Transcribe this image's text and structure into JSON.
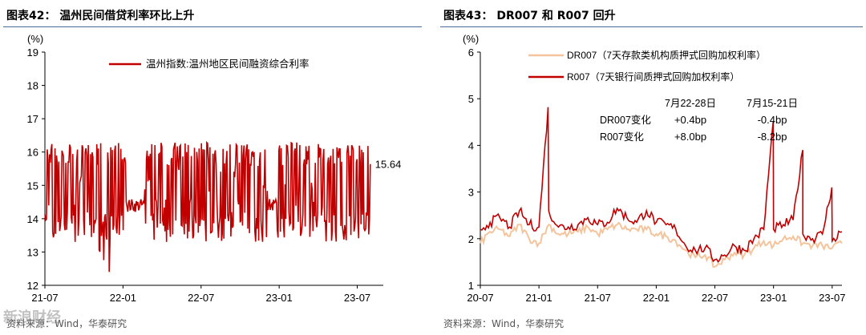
{
  "figures": [
    {
      "title": "图表42：  温州民间借贷利率环比上升",
      "source": "资料来源：Wind，华泰研究"
    },
    {
      "title": "图表43：  DR007 和 R007 回升",
      "source": "资料来源：Wind，华泰研究"
    }
  ],
  "watermark": "新浪财经",
  "chart_data": [
    {
      "type": "line",
      "title": "",
      "ylabel": "(%)",
      "ylim": [
        12,
        19
      ],
      "yticks": [
        "12",
        "13",
        "14",
        "15",
        "16",
        "17",
        "18",
        "19"
      ],
      "xticks": [
        "21-07",
        "22-01",
        "22-07",
        "23-01",
        "23-07"
      ],
      "xrange": [
        "2021-07",
        "2023-09"
      ],
      "grid": false,
      "legend_position": "top-center",
      "series": [
        {
          "name": "温州指数:温州地区民间融资综合利率",
          "color": "#c00000",
          "band_low": 13.6,
          "band_high": 16.1,
          "min": 12.35,
          "max": 16.85,
          "last": 15.64,
          "points": [
            [
              "2021-07",
              13.8
            ],
            [
              "2021-08",
              15.8
            ],
            [
              "2021-09",
              14.0
            ],
            [
              "2021-10",
              15.6
            ],
            [
              "2021-11",
              13.2
            ],
            [
              "2021-12",
              12.35
            ],
            [
              "2022-01",
              14.6
            ],
            [
              "2022-02",
              14.2
            ],
            [
              "2022-03",
              15.2
            ],
            [
              "2022-04",
              14.0
            ],
            [
              "2022-05",
              16.0
            ],
            [
              "2022-06",
              14.2
            ],
            [
              "2022-07",
              16.3
            ],
            [
              "2022-08",
              13.9
            ],
            [
              "2022-09",
              16.85
            ],
            [
              "2022-10",
              14.1
            ],
            [
              "2022-11",
              16.1
            ],
            [
              "2022-12",
              14.7
            ],
            [
              "2023-01",
              16.3
            ],
            [
              "2023-02",
              13.5
            ],
            [
              "2023-03",
              16.6
            ],
            [
              "2023-04",
              13.4
            ],
            [
              "2023-05",
              16.5
            ],
            [
              "2023-06",
              13.3
            ],
            [
              "2023-07",
              16.3
            ],
            [
              "2023-08",
              15.64
            ]
          ]
        }
      ],
      "annotations": [
        {
          "text": "15.64",
          "x": "2023-08",
          "y": 15.64
        }
      ]
    },
    {
      "type": "line",
      "title": "",
      "ylabel": "(%)",
      "ylim": [
        1,
        6
      ],
      "yticks": [
        "1",
        "2",
        "3",
        "4",
        "5",
        "6"
      ],
      "xticks": [
        "20-07",
        "21-01",
        "21-07",
        "22-01",
        "22-07",
        "23-01",
        "23-07"
      ],
      "xrange": [
        "2020-07",
        "2023-08"
      ],
      "grid": false,
      "legend_position": "top-left",
      "series": [
        {
          "name": "DR007（7天存款类机构质押式回购加权利率）",
          "color": "#f4c49c",
          "points": [
            [
              "2020-07",
              1.9
            ],
            [
              "2020-08",
              2.15
            ],
            [
              "2020-09",
              2.2
            ],
            [
              "2020-10",
              2.05
            ],
            [
              "2020-11",
              2.3
            ],
            [
              "2020-12",
              2.0
            ],
            [
              "2021-01",
              1.9
            ],
            [
              "2021-02",
              2.3
            ],
            [
              "2021-03",
              2.1
            ],
            [
              "2021-04",
              2.1
            ],
            [
              "2021-05",
              2.15
            ],
            [
              "2021-06",
              2.25
            ],
            [
              "2021-07",
              2.1
            ],
            [
              "2021-08",
              2.2
            ],
            [
              "2021-09",
              2.3
            ],
            [
              "2021-10",
              2.2
            ],
            [
              "2021-11",
              2.2
            ],
            [
              "2021-12",
              2.2
            ],
            [
              "2022-01",
              2.1
            ],
            [
              "2022-02",
              2.05
            ],
            [
              "2022-03",
              1.95
            ],
            [
              "2022-04",
              1.75
            ],
            [
              "2022-05",
              1.6
            ],
            [
              "2022-06",
              1.65
            ],
            [
              "2022-07",
              1.4
            ],
            [
              "2022-08",
              1.55
            ],
            [
              "2022-09",
              1.7
            ],
            [
              "2022-10",
              1.65
            ],
            [
              "2022-11",
              1.8
            ],
            [
              "2022-12",
              1.95
            ],
            [
              "2023-01",
              1.85
            ],
            [
              "2023-02",
              2.0
            ],
            [
              "2023-03",
              2.05
            ],
            [
              "2023-04",
              1.9
            ],
            [
              "2023-05",
              1.85
            ],
            [
              "2023-06",
              1.85
            ],
            [
              "2023-07",
              1.8
            ],
            [
              "2023-08",
              1.9
            ]
          ]
        },
        {
          "name": "R007（7天银行间质押式回购加权利率）",
          "color": "#c00000",
          "points": [
            [
              "2020-07",
              2.2
            ],
            [
              "2020-08",
              2.35
            ],
            [
              "2020-09",
              2.45
            ],
            [
              "2020-10",
              2.25
            ],
            [
              "2020-11",
              2.6
            ],
            [
              "2020-12",
              2.3
            ],
            [
              "2021-01",
              2.25
            ],
            [
              "2021-01-29",
              4.82
            ],
            [
              "2021-02",
              2.6
            ],
            [
              "2021-03",
              2.25
            ],
            [
              "2021-04",
              2.25
            ],
            [
              "2021-05",
              2.3
            ],
            [
              "2021-06",
              2.45
            ],
            [
              "2021-07",
              2.3
            ],
            [
              "2021-08",
              2.35
            ],
            [
              "2021-09",
              2.65
            ],
            [
              "2021-10",
              2.45
            ],
            [
              "2021-11",
              2.35
            ],
            [
              "2021-12",
              2.6
            ],
            [
              "2022-01",
              2.35
            ],
            [
              "2022-02",
              2.3
            ],
            [
              "2022-03",
              2.2
            ],
            [
              "2022-04",
              1.85
            ],
            [
              "2022-05",
              1.75
            ],
            [
              "2022-06",
              1.8
            ],
            [
              "2022-07",
              1.55
            ],
            [
              "2022-08",
              1.65
            ],
            [
              "2022-09",
              1.85
            ],
            [
              "2022-10",
              1.75
            ],
            [
              "2022-11",
              2.0
            ],
            [
              "2022-12",
              2.2
            ],
            [
              "2022-12-30",
              4.52
            ],
            [
              "2023-01",
              2.2
            ],
            [
              "2023-02",
              2.3
            ],
            [
              "2023-03",
              2.4
            ],
            [
              "2023-03-31",
              3.9
            ],
            [
              "2023-04",
              2.1
            ],
            [
              "2023-05",
              2.0
            ],
            [
              "2023-06",
              2.1
            ],
            [
              "2023-06-30",
              3.1
            ],
            [
              "2023-07",
              1.95
            ],
            [
              "2023-08",
              2.15
            ]
          ]
        }
      ],
      "table": {
        "headers": [
          "7月22-28日",
          "7月15-21日"
        ],
        "rows": [
          {
            "label": "DR007变化",
            "values": [
              "+0.4bp",
              "-0.4bp"
            ]
          },
          {
            "label": "R007变化",
            "values": [
              "+8.0bp",
              "-8.2bp"
            ]
          }
        ]
      }
    }
  ]
}
